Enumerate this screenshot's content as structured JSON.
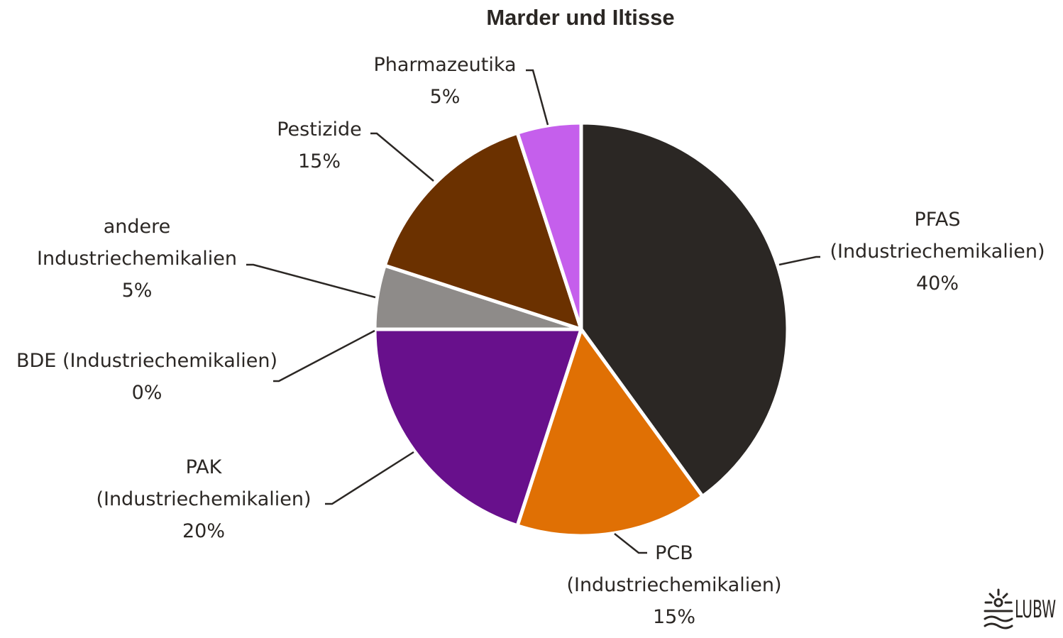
{
  "chart_data": {
    "type": "pie",
    "title": "Marder und Iltisse",
    "slices": [
      {
        "label_lines": [
          "PFAS",
          "(Industriechemikalien)"
        ],
        "value": 40,
        "value_label": "40%",
        "color": "#2b2724"
      },
      {
        "label_lines": [
          "PCB",
          "(Industriechemikalien)"
        ],
        "value": 15,
        "value_label": "15%",
        "color": "#e07004"
      },
      {
        "label_lines": [
          "PAK",
          "(Industriechemikalien)"
        ],
        "value": 20,
        "value_label": "20%",
        "color": "#68108c"
      },
      {
        "label_lines": [
          "BDE (Industriechemikalien)"
        ],
        "value": 0,
        "value_label": "0%",
        "color": "#8e8b89"
      },
      {
        "label_lines": [
          "andere",
          "Industriechemikalien"
        ],
        "value": 5,
        "value_label": "5%",
        "color": "#8e8b89"
      },
      {
        "label_lines": [
          "Pestizide"
        ],
        "value": 15,
        "value_label": "15%",
        "color": "#6b3100"
      },
      {
        "label_lines": [
          "Pharmazeutika"
        ],
        "value": 5,
        "value_label": "5%",
        "color": "#c55fec"
      }
    ],
    "start": "12 o'clock",
    "direction": "clockwise",
    "legend": "none"
  },
  "logo": {
    "text": "LUBW"
  }
}
